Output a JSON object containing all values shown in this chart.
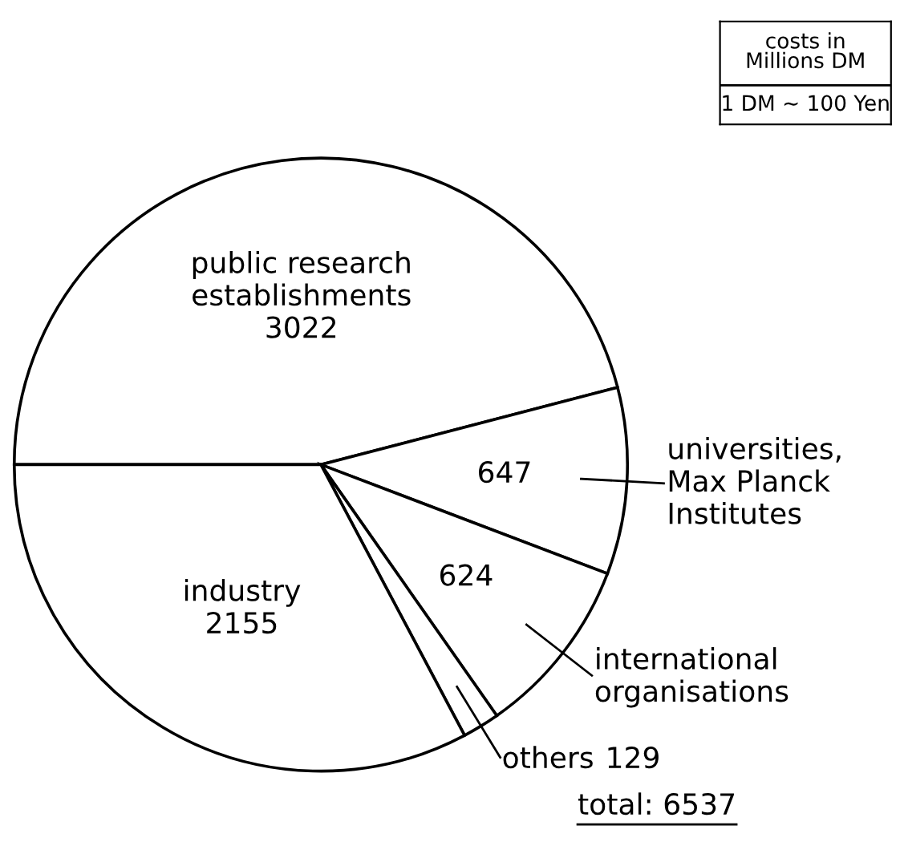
{
  "chart_data": {
    "type": "pie",
    "categories": [
      "public research\nestablishments",
      "universities,\nMax Planck\nInstitutes",
      "international\norganisations",
      "others",
      "industry"
    ],
    "values": [
      3022,
      647,
      624,
      129,
      2155
    ],
    "colors": [
      "#ffffff",
      "#ffffff",
      "#ffffff",
      "#ffffff",
      "#ffffff"
    ],
    "data_labels": true,
    "legend": false,
    "annotations": [
      "costs in\nMillions DM",
      "1 DM ~ 100 Yen",
      "total: 6537"
    ]
  }
}
